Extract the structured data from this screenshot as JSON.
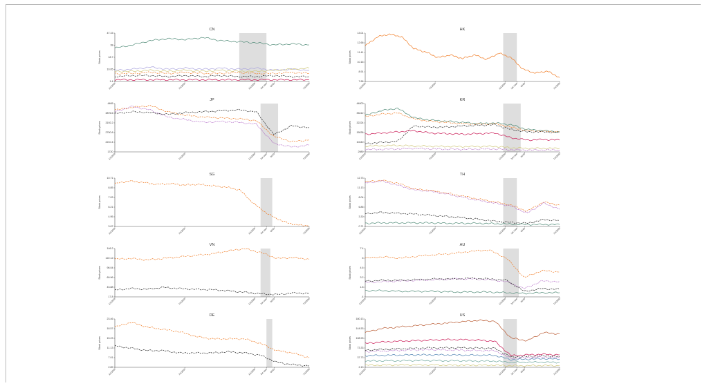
{
  "colors": {
    "orange": "#f07a22",
    "green": "#4e8a76",
    "black": "#222222",
    "purple": "#9a3bb5",
    "red": "#c8114f",
    "lavender": "#a9a3dd",
    "olive": "#cfc77a",
    "brown": "#b8572e",
    "blue": "#4a7fb0",
    "teal": "#6aa59a",
    "shade": "#d3d3d3"
  },
  "chart_data": [
    {
      "id": "CN",
      "type": "line",
      "title": "CN",
      "ylabel": "Stock prices",
      "yticks": [
        "47.15",
        "38",
        "18.7",
        "10.05",
        "1.4"
      ],
      "ylim": [
        1.4,
        47.15
      ],
      "xticks": [
        "1/1/2019",
        "7/1/2019",
        "1/1/2020",
        "1st case",
        "WHO",
        "7/1/2020"
      ],
      "shade": [
        0.64,
        0.78
      ],
      "series": [
        {
          "color": "green",
          "style": "solid",
          "values": [
            33,
            36,
            40,
            42,
            41,
            43,
            40,
            39,
            38,
            36,
            37,
            36
          ]
        },
        {
          "color": "lavender",
          "style": "solid",
          "values": [
            12,
            13,
            15,
            13,
            14,
            13,
            14,
            13,
            14,
            12,
            13,
            12
          ]
        },
        {
          "color": "olive",
          "style": "solid",
          "values": [
            11,
            11,
            12,
            11,
            12,
            11,
            12,
            11,
            11,
            12,
            13,
            14
          ]
        },
        {
          "color": "orange",
          "style": "dash",
          "values": [
            9,
            9,
            10,
            9,
            10,
            9,
            9,
            10,
            9,
            9,
            10,
            9
          ]
        },
        {
          "color": "black",
          "style": "dash",
          "values": [
            6,
            7,
            7,
            6,
            7,
            6,
            7,
            6,
            6,
            7,
            6,
            6
          ]
        },
        {
          "color": "red",
          "style": "solid",
          "values": [
            3,
            3,
            3,
            3,
            3,
            3,
            3,
            3,
            3,
            3,
            3,
            3
          ]
        }
      ]
    },
    {
      "id": "HK",
      "type": "line",
      "title": "HK",
      "ylabel": "Stock prices",
      "yticks": [
        "13.01",
        "12.66",
        "11.41",
        "10.16",
        "8.91",
        "7.66"
      ],
      "ylim": [
        7.66,
        13.01
      ],
      "xticks": [
        "1/1/2019",
        "7/1/2019",
        "1/1/2020",
        "1st case",
        "WHO",
        "7/1/2020"
      ],
      "shade": [
        0.71,
        0.78
      ],
      "series": [
        {
          "color": "orange",
          "style": "solid",
          "values": [
            11.6,
            12.6,
            12.9,
            12.6,
            11.3,
            10.9,
            10.3,
            10.6,
            10.2,
            10.6,
            10.1,
            10.8,
            10.3,
            9.0,
            8.6,
            8.8,
            8.1
          ]
        }
      ]
    },
    {
      "id": "JP",
      "type": "line",
      "title": "JP",
      "ylabel": "Stock prices",
      "yticks": [
        "4465",
        "3876.6",
        "3192.2",
        "2700.8",
        "2210.4",
        "1720"
      ],
      "ylim": [
        1720,
        4465
      ],
      "xticks": [
        "1/1/2019",
        "7/1/2019",
        "1/1/2020",
        "1st case",
        "WHO",
        "7/1/2020"
      ],
      "shade": [
        0.75,
        0.84
      ],
      "series": [
        {
          "color": "orange",
          "style": "dash",
          "values": [
            4100,
            4250,
            4350,
            4000,
            3800,
            3700,
            3650,
            3600,
            3500,
            2600,
            2300,
            2400
          ]
        },
        {
          "color": "black",
          "style": "dash",
          "values": [
            3900,
            4000,
            3950,
            3850,
            3950,
            4000,
            4050,
            4100,
            4000,
            2700,
            3200,
            3100
          ]
        },
        {
          "color": "purple",
          "style": "dot",
          "values": [
            4000,
            4300,
            4100,
            3700,
            3550,
            3400,
            3450,
            3400,
            3300,
            2200,
            2000,
            2100
          ]
        }
      ]
    },
    {
      "id": "KR",
      "type": "line",
      "title": "KR",
      "ylabel": "Stock prices",
      "yticks": [
        "44000",
        "35412",
        "32224",
        "15036",
        "10440",
        "2989"
      ],
      "ylim": [
        2989,
        44000
      ],
      "xticks": [
        "1/1/2019",
        "7/1/2019",
        "1/1/2020",
        "1st case",
        "WHO",
        "7/1/2020"
      ],
      "shade": [
        0.71,
        0.8
      ],
      "series": [
        {
          "color": "green",
          "style": "solid",
          "values": [
            34000,
            38000,
            40000,
            32000,
            30000,
            29000,
            28000,
            27000,
            27500,
            26000,
            22000,
            21000,
            20000
          ]
        },
        {
          "color": "orange",
          "style": "dash",
          "values": [
            33000,
            35000,
            36000,
            31000,
            29000,
            28000,
            27000,
            26500,
            27000,
            24000,
            21000,
            20500,
            20000
          ]
        },
        {
          "color": "black",
          "style": "dash",
          "values": [
            10000,
            11000,
            12000,
            25000,
            24000,
            24000,
            25000,
            25500,
            26000,
            22000,
            20000,
            20000,
            19500
          ]
        },
        {
          "color": "red",
          "style": "solid",
          "values": [
            18000,
            19000,
            20000,
            21000,
            19000,
            18500,
            18000,
            18500,
            19000,
            15000,
            13000,
            13500,
            13000
          ]
        },
        {
          "color": "olive",
          "style": "solid",
          "values": [
            8000,
            8200,
            8500,
            8000,
            7800,
            7600,
            7500,
            7600,
            7700,
            6500,
            6000,
            6000,
            6000
          ]
        },
        {
          "color": "purple",
          "style": "dot",
          "values": [
            5000,
            5200,
            5500,
            6000,
            5500,
            5300,
            5200,
            5400,
            5500,
            4800,
            4500,
            4600,
            4500
          ]
        }
      ]
    },
    {
      "id": "SG",
      "type": "line",
      "title": "SG",
      "ylabel": "Stock prices",
      "yticks": [
        "10.71",
        "8.85",
        "7.03",
        "6.21",
        "4.95",
        "3.67"
      ],
      "ylim": [
        3.67,
        10.71
      ],
      "xticks": [
        "1/1/2019",
        "7/1/2019",
        "1/1/2020",
        "1st case",
        "WHO",
        "7/1/2020"
      ],
      "shade": [
        0.75,
        0.81
      ],
      "series": [
        {
          "color": "orange",
          "style": "dash",
          "values": [
            9.9,
            10.3,
            10.1,
            9.8,
            9.9,
            9.7,
            9.8,
            9.6,
            9.4,
            9.0,
            7.0,
            5.5,
            4.5,
            3.9,
            3.8
          ]
        }
      ]
    },
    {
      "id": "TH",
      "type": "line",
      "title": "TH",
      "ylabel": "Stock prices",
      "yticks": [
        "12.73",
        "11.13",
        "8.04",
        "6.85",
        "3.30",
        "0.71"
      ],
      "ylim": [
        0.71,
        12.73
      ],
      "xticks": [
        "1/1/2019",
        "7/1/2019",
        "1/1/2020",
        "1st case",
        "WHO",
        "7/1/2020"
      ],
      "shade": [
        0.71,
        0.78
      ],
      "series": [
        {
          "color": "orange",
          "style": "dash",
          "values": [
            11.8,
            12.2,
            11.5,
            10.0,
            9.7,
            9.0,
            8.3,
            7.5,
            6.8,
            6.0,
            4.5,
            6.8,
            6.0
          ]
        },
        {
          "color": "purple",
          "style": "dot",
          "values": [
            11.5,
            12.0,
            11.0,
            9.8,
            9.5,
            8.8,
            8.0,
            7.2,
            6.5,
            5.8,
            4.0,
            6.5,
            5.0
          ]
        },
        {
          "color": "black",
          "style": "dash",
          "values": [
            3.9,
            4.2,
            4.0,
            3.8,
            3.5,
            3.2,
            2.9,
            2.5,
            2.0,
            1.7,
            1.5,
            2.4,
            2.2
          ]
        },
        {
          "color": "green",
          "style": "solid",
          "values": [
            1.5,
            1.6,
            1.6,
            1.6,
            1.6,
            1.5,
            1.5,
            1.5,
            1.4,
            1.3,
            1.2,
            1.2,
            1.2
          ]
        }
      ]
    },
    {
      "id": "VN",
      "type": "line",
      "title": "VN",
      "ylabel": "Stock prices",
      "yticks": [
        "146.2",
        "122.12",
        "96.04",
        "69.96",
        "43.88",
        "17.8"
      ],
      "ylim": [
        17.8,
        146.2
      ],
      "xticks": [
        "1/1/2019",
        "7/1/2019",
        "1/1/2020",
        "1st case",
        "WHO",
        "7/1/2020"
      ],
      "shade": [
        0.75,
        0.8
      ],
      "series": [
        {
          "color": "orange",
          "style": "dash",
          "values": [
            118,
            120,
            116,
            120,
            124,
            128,
            132,
            140,
            146,
            136,
            120,
            122,
            118
          ]
        },
        {
          "color": "black",
          "style": "dash",
          "values": [
            36,
            40,
            38,
            43,
            40,
            38,
            37,
            34,
            30,
            26,
            24,
            28,
            27
          ]
        }
      ]
    },
    {
      "id": "AU",
      "type": "line",
      "title": "AU",
      "ylabel": "Stock prices",
      "yticks": [
        "7.4",
        "6",
        "4.6",
        "3.2",
        "1.8",
        ".4"
      ],
      "ylim": [
        0.4,
        7.4
      ],
      "xticks": [
        "1/1/2019",
        "7/1/2019",
        "1/1/2020",
        "1st case",
        "WHO",
        "7/1/2020"
      ],
      "shade": [
        0.71,
        0.79
      ],
      "series": [
        {
          "color": "orange",
          "style": "dash",
          "values": [
            6.0,
            6.2,
            6.0,
            6.3,
            6.5,
            6.7,
            7.0,
            7.2,
            6.0,
            3.2,
            4.2,
            4.0
          ]
        },
        {
          "color": "purple",
          "style": "dot",
          "values": [
            2.5,
            2.6,
            2.7,
            2.8,
            2.9,
            3.0,
            3.0,
            2.9,
            2.6,
            1.6,
            2.7,
            2.6
          ]
        },
        {
          "color": "black",
          "style": "dash",
          "values": [
            2.7,
            2.8,
            2.8,
            2.9,
            3.0,
            3.0,
            3.1,
            3.0,
            2.8,
            1.2,
            1.6,
            1.5
          ]
        },
        {
          "color": "green",
          "style": "solid",
          "values": [
            1.3,
            1.3,
            1.2,
            1.2,
            1.2,
            1.1,
            1.1,
            1.1,
            1.0,
            0.9,
            1.0,
            1.0
          ]
        }
      ]
    },
    {
      "id": "DE",
      "type": "line",
      "title": "DE",
      "ylabel": "Stock prices",
      "yticks": [
        "23.46",
        "18.57",
        "15.23",
        "11.13",
        "7.01",
        "2.89"
      ],
      "ylim": [
        2.89,
        23.46
      ],
      "xticks": [
        "1/1/2019",
        "7/1/2019",
        "1/1/2020",
        "1st case",
        "WHO",
        "7/1/2020"
      ],
      "shade": [
        0.78,
        0.81
      ],
      "series": [
        {
          "color": "orange",
          "style": "dash",
          "values": [
            20,
            22,
            20,
            19,
            18,
            16,
            15,
            15,
            15,
            13,
            10,
            9,
            7
          ]
        },
        {
          "color": "black",
          "style": "dash",
          "values": [
            12,
            11,
            10,
            10,
            9,
            9,
            9,
            9.5,
            9,
            8,
            5,
            4,
            3.5
          ]
        }
      ]
    },
    {
      "id": "US",
      "type": "line",
      "title": "US",
      "ylabel": "Stock prices",
      "yticks": [
        "180.13",
        "144.53",
        "108.93",
        "73.33",
        "37.73",
        "2.13"
      ],
      "ylim": [
        2.13,
        180.13
      ],
      "xticks": [
        "1/1/2019",
        "7/1/2019",
        "1/1/2020",
        "1st case",
        "WHO",
        "7/1/2020"
      ],
      "shade": [
        0.71,
        0.78
      ],
      "series": [
        {
          "color": "brown",
          "style": "solid",
          "values": [
            130,
            145,
            150,
            155,
            160,
            165,
            170,
            175,
            172,
            110,
            100,
            130,
            125
          ]
        },
        {
          "color": "red",
          "style": "solid",
          "values": [
            90,
            95,
            98,
            100,
            102,
            104,
            104,
            102,
            98,
            45,
            48,
            50,
            48
          ]
        },
        {
          "color": "black",
          "style": "dash",
          "values": [
            65,
            68,
            70,
            72,
            74,
            74,
            74,
            73,
            72,
            40,
            42,
            44,
            42
          ]
        },
        {
          "color": "purple",
          "style": "dot",
          "values": [
            60,
            62,
            64,
            66,
            67,
            66,
            65,
            64,
            63,
            35,
            38,
            40,
            37
          ]
        },
        {
          "color": "blue",
          "style": "solid",
          "values": [
            45,
            46,
            47,
            48,
            48,
            48,
            47,
            47,
            46,
            30,
            32,
            34,
            32
          ]
        },
        {
          "color": "teal",
          "style": "solid",
          "values": [
            25,
            26,
            26,
            27,
            27,
            26,
            26,
            25,
            25,
            20,
            21,
            21,
            20
          ]
        },
        {
          "color": "olive",
          "style": "solid",
          "values": [
            10,
            10,
            11,
            11,
            11,
            10,
            10,
            10,
            10,
            8,
            8,
            9,
            8
          ]
        }
      ]
    }
  ]
}
